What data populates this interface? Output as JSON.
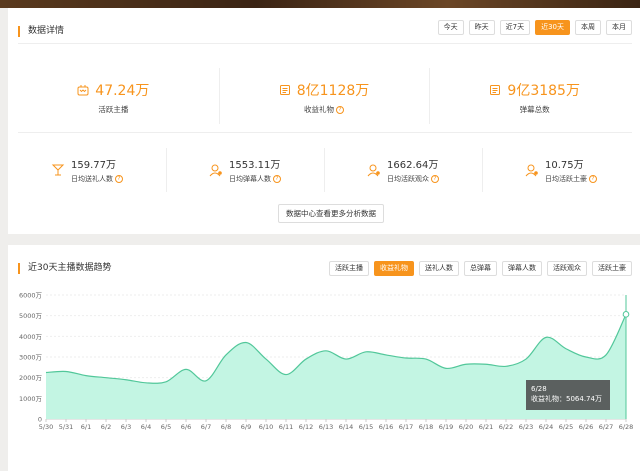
{
  "section1": {
    "title": "数据详情",
    "tabs": [
      "今天",
      "昨天",
      "近7天",
      "近30天",
      "本周",
      "本月"
    ],
    "active_tab": 3
  },
  "big_stats": [
    {
      "value": "47.24万",
      "label": "活跃主播",
      "icon": "anchor-icon"
    },
    {
      "value": "8亿1128万",
      "label": "收益礼物",
      "icon": "gift-ledger-icon"
    },
    {
      "value": "9亿3185万",
      "label": "弹幕总数",
      "icon": "barrage-ledger-icon"
    }
  ],
  "small_stats": [
    {
      "value": "159.77万",
      "label": "日均送礼人数",
      "icon": "cocktail-icon"
    },
    {
      "value": "1553.11万",
      "label": "日均弹幕人数",
      "icon": "user-barrage-icon"
    },
    {
      "value": "1662.64万",
      "label": "日均活跃观众",
      "icon": "user-active-icon"
    },
    {
      "value": "10.75万",
      "label": "日均活跃土豪",
      "icon": "user-rich-icon"
    }
  ],
  "more_button": "数据中心查看更多分析数据",
  "section2": {
    "title": "近30天主播数据趋势",
    "tabs": [
      "活跃主播",
      "收益礼物",
      "送礼人数",
      "总弹幕",
      "弹幕人数",
      "活跃观众",
      "活跃土豪"
    ],
    "active_tab": 1
  },
  "tooltip": {
    "date": "6/28",
    "text": "收益礼物：5064.74万"
  },
  "colors": {
    "accent": "#f7941d",
    "area_fill": "#c3f5e3",
    "line": "#52c79a"
  },
  "chart_data": {
    "type": "area",
    "x": [
      "5/30",
      "5/31",
      "6/1",
      "6/2",
      "6/3",
      "6/4",
      "6/5",
      "6/6",
      "6/7",
      "6/8",
      "6/9",
      "6/10",
      "6/11",
      "6/12",
      "6/13",
      "6/14",
      "6/15",
      "6/16",
      "6/17",
      "6/18",
      "6/19",
      "6/20",
      "6/21",
      "6/22",
      "6/23",
      "6/24",
      "6/25",
      "6/26",
      "6/27",
      "6/28"
    ],
    "y_tick_labels": [
      "0",
      "1000万",
      "2000万",
      "3000万",
      "4000万",
      "5000万",
      "6000万"
    ],
    "ylim": [
      0,
      6000
    ],
    "series": [
      {
        "values": [
          2250,
          2300,
          2100,
          2000,
          1900,
          1750,
          1800,
          2400,
          1850,
          3100,
          3700,
          2900,
          2150,
          2900,
          3300,
          2900,
          3250,
          3100,
          2950,
          2900,
          2450,
          2650,
          2650,
          2550,
          2900,
          3950,
          3400,
          3000,
          3100,
          5064.74
        ]
      }
    ],
    "grid": true
  }
}
